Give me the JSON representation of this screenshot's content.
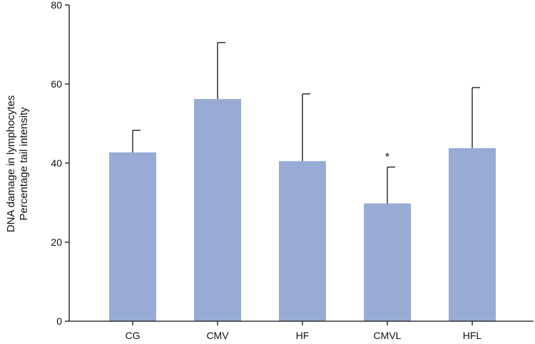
{
  "chart_data": {
    "type": "bar",
    "title": "",
    "xlabel": "",
    "ylabel_lines": [
      "DNA damage in lymphocytes",
      "Percentage tail intensity"
    ],
    "categories": [
      "CG",
      "CMV",
      "HF",
      "CMVL",
      "HFL"
    ],
    "values": [
      42.7,
      56.2,
      40.5,
      29.8,
      43.8
    ],
    "errors": [
      5.6,
      14.3,
      17.0,
      9.2,
      15.3
    ],
    "annotations": [
      "",
      "",
      "",
      "*",
      ""
    ],
    "ylim": [
      0,
      80
    ],
    "yticks": [
      "0",
      "20",
      "40",
      "60",
      "80"
    ],
    "grid": false,
    "legend": "none",
    "bar_color": "#97abd5",
    "axis_color": "#111111"
  }
}
